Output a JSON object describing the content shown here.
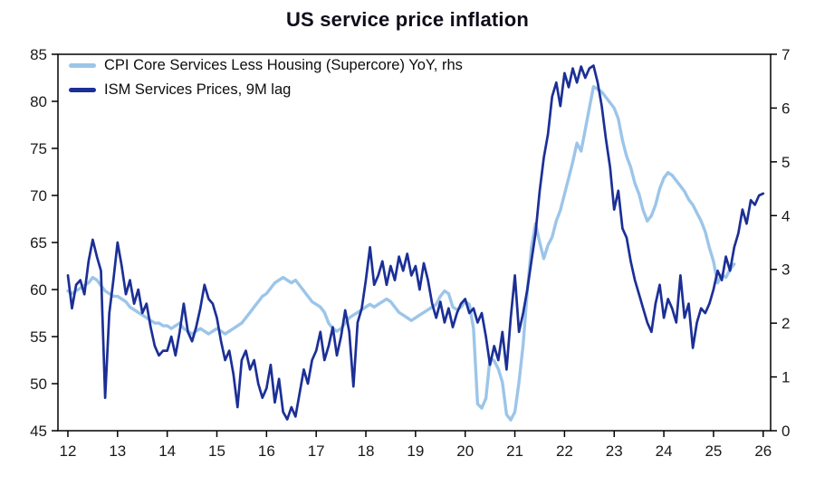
{
  "chart_data": {
    "type": "line",
    "title": "US service price inflation",
    "grid": false,
    "legend_position": "top-left-inside",
    "background": "#FFFFFF",
    "frame_color": "#000000",
    "x_axis": {
      "min": 11.8,
      "max": 26.15,
      "ticks": [
        12,
        13,
        14,
        15,
        16,
        17,
        18,
        19,
        20,
        21,
        22,
        23,
        24,
        25,
        26
      ]
    },
    "left_axis": {
      "min": 45,
      "max": 85,
      "ticks": [
        45,
        50,
        55,
        60,
        65,
        70,
        75,
        80,
        85
      ]
    },
    "right_axis": {
      "min": 0,
      "max": 7,
      "ticks": [
        0,
        1,
        2,
        3,
        4,
        5,
        6,
        7
      ]
    },
    "series": [
      {
        "name": "CPI Core Services Less Housing (Supercore) YoY, rhs",
        "axis": "right",
        "color": "#9CC5E9",
        "line_width": 3.4,
        "x_start": 12,
        "x_step_months": 1,
        "values": [
          2.6,
          2.55,
          2.6,
          2.65,
          2.7,
          2.75,
          2.85,
          2.8,
          2.7,
          2.6,
          2.55,
          2.5,
          2.5,
          2.45,
          2.4,
          2.3,
          2.25,
          2.2,
          2.15,
          2.1,
          2.05,
          2.0,
          2.0,
          1.95,
          1.95,
          1.9,
          1.95,
          2.0,
          1.9,
          1.85,
          1.8,
          1.85,
          1.9,
          1.85,
          1.8,
          1.85,
          1.9,
          1.85,
          1.8,
          1.85,
          1.9,
          1.95,
          2.0,
          2.1,
          2.2,
          2.3,
          2.4,
          2.5,
          2.55,
          2.65,
          2.75,
          2.8,
          2.85,
          2.8,
          2.75,
          2.8,
          2.7,
          2.6,
          2.5,
          2.4,
          2.35,
          2.3,
          2.2,
          2.0,
          1.9,
          1.85,
          1.9,
          2.0,
          2.1,
          2.15,
          2.2,
          2.25,
          2.3,
          2.35,
          2.3,
          2.35,
          2.4,
          2.45,
          2.4,
          2.3,
          2.2,
          2.15,
          2.1,
          2.05,
          2.1,
          2.15,
          2.2,
          2.25,
          2.3,
          2.35,
          2.5,
          2.6,
          2.55,
          2.3,
          2.25,
          2.3,
          2.4,
          2.35,
          1.9,
          0.5,
          0.42,
          0.6,
          1.35,
          1.3,
          1.15,
          0.9,
          0.3,
          0.2,
          0.35,
          0.9,
          1.6,
          2.6,
          3.4,
          3.85,
          3.5,
          3.2,
          3.45,
          3.6,
          3.9,
          4.1,
          4.4,
          4.7,
          5.0,
          5.35,
          5.2,
          5.6,
          6.0,
          6.4,
          6.35,
          6.3,
          6.2,
          6.1,
          6.0,
          5.8,
          5.4,
          5.1,
          4.9,
          4.6,
          4.4,
          4.1,
          3.9,
          4.0,
          4.2,
          4.5,
          4.7,
          4.8,
          4.75,
          4.65,
          4.55,
          4.45,
          4.3,
          4.2,
          4.05,
          3.9,
          3.7,
          3.4,
          3.15,
          2.75,
          2.9,
          2.85,
          3.0,
          3.1
        ]
      },
      {
        "name": "ISM Services Prices, 9M lag",
        "axis": "left",
        "color": "#1C2F96",
        "line_width": 2.7,
        "x_start": 12,
        "x_step_months": 1,
        "values": [
          61.5,
          58.0,
          60.5,
          61.0,
          59.5,
          63.0,
          65.3,
          63.5,
          62.0,
          48.5,
          57.5,
          61.0,
          65.0,
          62.5,
          59.5,
          61.0,
          58.5,
          60.0,
          57.5,
          58.5,
          56.0,
          54.0,
          53.0,
          53.5,
          53.5,
          55.0,
          53.0,
          55.5,
          58.5,
          55.5,
          54.5,
          56.0,
          58.0,
          60.5,
          59.0,
          58.5,
          57.0,
          54.5,
          52.5,
          53.5,
          51.0,
          47.5,
          52.5,
          53.5,
          51.5,
          52.5,
          50.0,
          48.5,
          49.5,
          52.0,
          48.0,
          50.5,
          47.0,
          46.2,
          47.5,
          46.5,
          49.0,
          51.5,
          50.0,
          52.5,
          53.5,
          55.5,
          52.5,
          54.0,
          56.0,
          53.0,
          55.0,
          57.8,
          55.5,
          49.7,
          56.5,
          58.0,
          61.0,
          64.5,
          60.5,
          61.5,
          63.0,
          60.5,
          62.5,
          61.0,
          63.5,
          62.0,
          63.8,
          61.5,
          62.5,
          60.0,
          62.8,
          61.0,
          58.5,
          57.0,
          58.7,
          56.5,
          58.0,
          56.0,
          57.5,
          58.5,
          59.0,
          57.5,
          58.0,
          56.5,
          57.5,
          55.0,
          52.0,
          54.0,
          52.5,
          55.5,
          51.5,
          57.0,
          61.5,
          55.5,
          57.5,
          60.0,
          63.0,
          66.0,
          70.5,
          74.0,
          76.5,
          80.5,
          82.0,
          79.5,
          83.0,
          81.5,
          83.5,
          82.0,
          83.7,
          82.5,
          83.5,
          83.8,
          82.0,
          79.5,
          76.0,
          73.0,
          68.5,
          70.5,
          66.5,
          65.5,
          63.0,
          61.0,
          59.5,
          58.0,
          56.5,
          55.5,
          58.5,
          60.5,
          57.0,
          59.0,
          58.0,
          56.5,
          61.5,
          57.0,
          58.5,
          53.8,
          56.5,
          58.0,
          57.5,
          58.5,
          60.0,
          62.0,
          61.0,
          63.5,
          62.0,
          64.5,
          66.0,
          68.5,
          67.0,
          69.5,
          69.0,
          70.0,
          70.2
        ]
      }
    ]
  }
}
